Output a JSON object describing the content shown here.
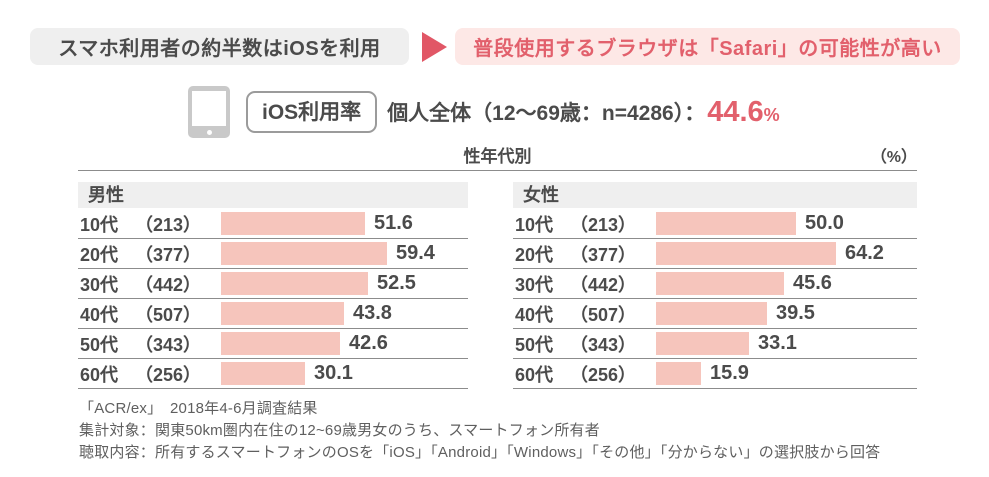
{
  "headline": {
    "statement": "スマホ利用者の約半数はiOSを利用",
    "implication": "普段使用するブラウザは「Safari」の可能性が高い"
  },
  "summary": {
    "metric_label": "iOS利用率",
    "scope_label": "個人全体（12〜69歳：n=4286）：",
    "value": "44.6",
    "unit": "%"
  },
  "chart_data": {
    "type": "bar",
    "orientation": "horizontal",
    "title": "性年代別",
    "unit_label": "（%）",
    "xlim": [
      0,
      70
    ],
    "grid": false,
    "bar_color": "#f6c5bc",
    "categories": [
      "10代",
      "20代",
      "30代",
      "40代",
      "50代",
      "60代"
    ],
    "series": [
      {
        "name": "男性",
        "sample_sizes": [
          "（213）",
          "（377）",
          "（442）",
          "（507）",
          "（343）",
          "（256）"
        ],
        "values": [
          51.6,
          59.4,
          52.5,
          43.8,
          42.6,
          30.1
        ]
      },
      {
        "name": "女性",
        "sample_sizes": [
          "（213）",
          "（377）",
          "（442）",
          "（507）",
          "（343）",
          "（256）"
        ],
        "values": [
          50.0,
          64.2,
          45.6,
          39.5,
          33.1,
          15.9
        ]
      }
    ]
  },
  "footnotes": [
    "「ACR/ex」　2018年4-6月調査結果",
    "集計対象：関東50km圏内在住の12~69歳男女のうち、スマートフォン所有者",
    "聴取内容：所有するスマートフォンのOSを「iOS」「Android」「Windows」「その他」「分からない」の選択肢から回答"
  ],
  "colors": {
    "accent_red": "#e2606c",
    "bar_pink": "#f6c5bc",
    "panel_gray": "#efefef"
  }
}
